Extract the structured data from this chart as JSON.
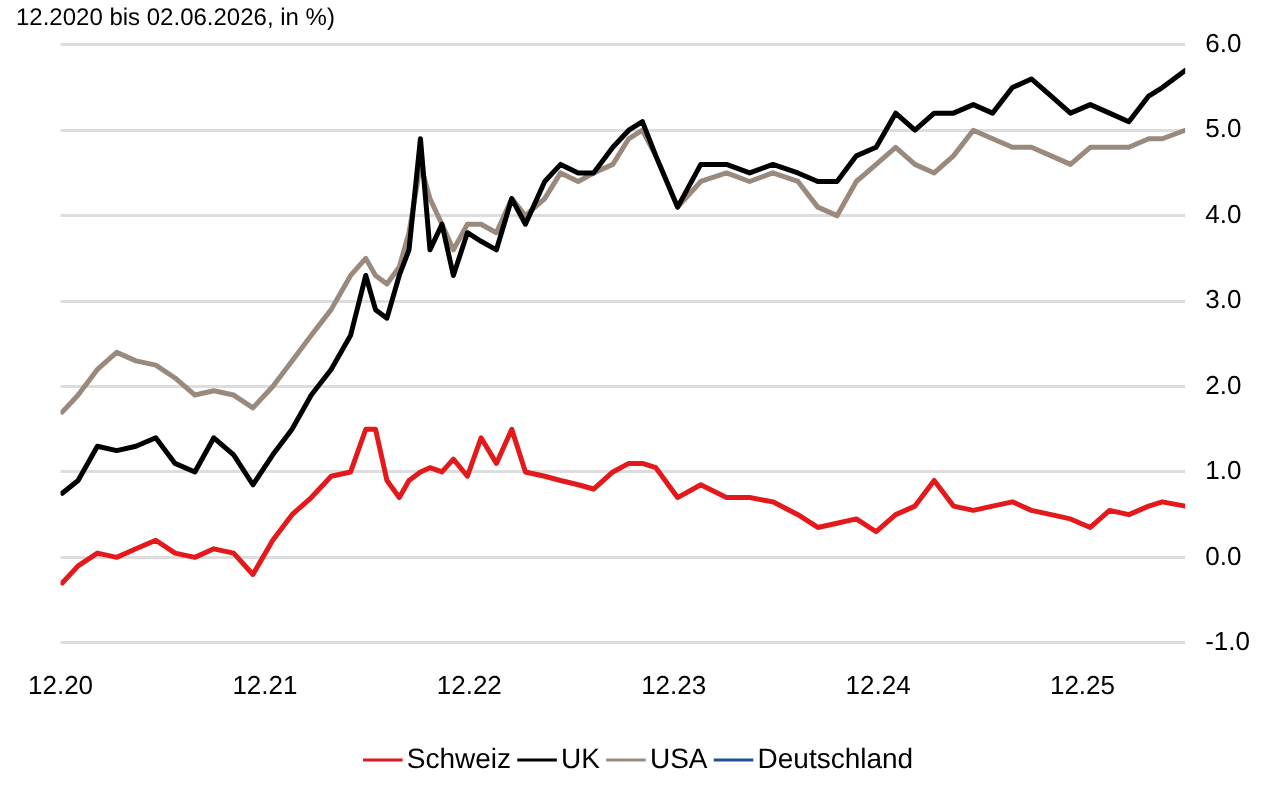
{
  "chart_data": {
    "type": "line",
    "title": "12.2020 bis 02.06.2026, in %)",
    "x": [
      "2020-12-04",
      "2021-01-02",
      "2021-02-06",
      "2021-03-10",
      "2021-04-14",
      "2021-05-19",
      "2021-06-23",
      "2021-07-28",
      "2021-09-01",
      "2021-10-06",
      "2021-11-10",
      "2021-12-15",
      "2022-01-19",
      "2022-02-23",
      "2022-03-28",
      "2022-05-02",
      "2022-05-29",
      "2022-06-16",
      "2022-07-06",
      "2022-07-28",
      "2022-08-15",
      "2022-09-05",
      "2022-09-22",
      "2022-10-13",
      "2022-11-03",
      "2022-11-28",
      "2022-12-22",
      "2023-01-19",
      "2023-02-16",
      "2023-03-10",
      "2023-04-14",
      "2023-05-12",
      "2023-06-13",
      "2023-07-10",
      "2023-08-14",
      "2023-09-12",
      "2023-10-06",
      "2023-10-30",
      "2023-12-08",
      "2024-01-19",
      "2024-03-04",
      "2024-04-15",
      "2024-05-26",
      "2024-07-10",
      "2024-08-15",
      "2024-09-19",
      "2024-10-23",
      "2024-11-28",
      "2025-01-02",
      "2025-02-06",
      "2025-03-10",
      "2025-04-14",
      "2025-05-19",
      "2025-06-23",
      "2025-07-28",
      "2025-09-01",
      "2025-10-06",
      "2025-11-10",
      "2025-12-15",
      "2026-01-19",
      "2026-02-23",
      "2026-03-28",
      "2026-04-22",
      "2026-06-02"
    ],
    "series": [
      {
        "name": "Schweiz",
        "color": "#e3191c",
        "values": [
          -0.3,
          -0.1,
          0.05,
          0.0,
          0.1,
          0.2,
          0.05,
          0.0,
          0.1,
          0.05,
          -0.2,
          0.2,
          0.5,
          0.7,
          0.95,
          1.0,
          1.5,
          1.5,
          0.9,
          0.7,
          0.9,
          1.0,
          1.05,
          1.0,
          1.15,
          0.95,
          1.4,
          1.1,
          1.5,
          1.0,
          0.95,
          0.9,
          0.85,
          0.8,
          1.0,
          1.1,
          1.1,
          1.05,
          0.7,
          0.85,
          0.7,
          0.7,
          0.65,
          0.5,
          0.35,
          0.4,
          0.45,
          0.3,
          0.5,
          0.6,
          0.9,
          0.6,
          0.55,
          0.6,
          0.65,
          0.55,
          0.5,
          0.45,
          0.35,
          0.55,
          0.5,
          0.6,
          0.65,
          0.6
        ]
      },
      {
        "name": "UK",
        "color": "#000000",
        "values": [
          0.75,
          0.9,
          1.3,
          1.25,
          1.3,
          1.4,
          1.1,
          1.0,
          1.4,
          1.2,
          0.85,
          1.2,
          1.5,
          1.9,
          2.2,
          2.6,
          3.3,
          2.9,
          2.8,
          3.3,
          3.6,
          4.9,
          3.6,
          3.9,
          3.3,
          3.8,
          3.7,
          3.6,
          4.2,
          3.9,
          4.4,
          4.6,
          4.5,
          4.5,
          4.8,
          5.0,
          5.1,
          4.7,
          4.1,
          4.6,
          4.6,
          4.5,
          4.6,
          4.5,
          4.4,
          4.4,
          4.7,
          4.8,
          5.2,
          5.0,
          5.2,
          5.2,
          5.3,
          5.2,
          5.5,
          5.6,
          5.4,
          5.2,
          5.3,
          5.2,
          5.1,
          5.4,
          5.5,
          5.7
        ]
      },
      {
        "name": "USA",
        "color": "#9a8a7e",
        "values": [
          1.7,
          1.9,
          2.2,
          2.4,
          2.3,
          2.25,
          2.1,
          1.9,
          1.95,
          1.9,
          1.75,
          2.0,
          2.3,
          2.6,
          2.9,
          3.3,
          3.5,
          3.3,
          3.2,
          3.4,
          3.8,
          4.6,
          4.2,
          3.9,
          3.6,
          3.9,
          3.9,
          3.8,
          4.2,
          4.0,
          4.2,
          4.5,
          4.4,
          4.5,
          4.6,
          4.9,
          5.0,
          4.7,
          4.1,
          4.4,
          4.5,
          4.4,
          4.5,
          4.4,
          4.1,
          4.0,
          4.4,
          4.6,
          4.8,
          4.6,
          4.5,
          4.7,
          5.0,
          4.9,
          4.8,
          4.8,
          4.7,
          4.6,
          4.8,
          4.8,
          4.8,
          4.9,
          4.9,
          5.0
        ]
      },
      {
        "name": "Deutschland",
        "color": "#1f4e9c",
        "values": [
          null,
          null,
          null,
          null,
          null,
          null,
          null,
          null,
          null,
          null,
          null,
          null,
          null,
          null,
          null,
          null,
          null,
          null,
          null,
          null,
          null,
          null,
          null,
          null,
          null,
          null,
          null,
          null,
          null,
          null,
          null,
          null,
          null,
          null,
          null,
          null,
          null,
          null,
          null,
          null,
          null,
          null,
          null,
          null,
          null,
          null,
          null,
          null,
          null,
          null,
          null,
          null,
          null,
          null,
          null,
          null,
          null,
          null,
          null,
          null,
          null,
          null,
          null,
          null
        ]
      }
    ],
    "xlim": [
      "2020-12-01",
      "2026-06-02"
    ],
    "xticks": [
      {
        "value": "2020-12-01",
        "label": "12.20"
      },
      {
        "value": "2021-12-01",
        "label": "12.21"
      },
      {
        "value": "2022-12-01",
        "label": "12.22"
      },
      {
        "value": "2023-12-01",
        "label": "12.23"
      },
      {
        "value": "2024-12-01",
        "label": "12.24"
      },
      {
        "value": "2025-12-01",
        "label": "12.25"
      }
    ],
    "ylim": [
      -1,
      6
    ],
    "yticks": [
      {
        "value": -1,
        "label": "-1.0"
      },
      {
        "value": 0,
        "label": "0.0"
      },
      {
        "value": 1,
        "label": "1.0"
      },
      {
        "value": 2,
        "label": "2.0"
      },
      {
        "value": 3,
        "label": "3.0"
      },
      {
        "value": 4,
        "label": "4.0"
      },
      {
        "value": 5,
        "label": "5.0"
      },
      {
        "value": 6,
        "label": "6.0"
      }
    ],
    "grid": "y",
    "legend": "bottom",
    "marker": "none",
    "line_style": "solid"
  }
}
